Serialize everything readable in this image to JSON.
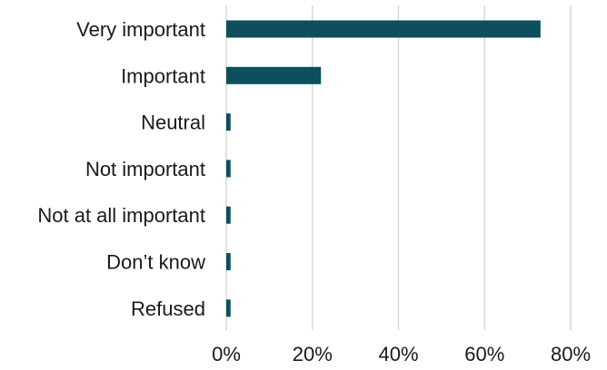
{
  "chart_data": {
    "type": "bar",
    "orientation": "horizontal",
    "categories": [
      "Very important",
      "Important",
      "Neutral",
      "Not important",
      "Not at all important",
      "Don’t know",
      "Refused"
    ],
    "values": [
      73,
      22,
      1,
      1,
      1,
      1,
      1
    ],
    "value_unit": "%",
    "xlim": [
      0,
      80
    ],
    "x_ticks": [
      0,
      20,
      40,
      60,
      80
    ],
    "x_tick_labels": [
      "0%",
      "20%",
      "40%",
      "60%",
      "80%"
    ],
    "grid": "vertical",
    "legend": "none",
    "bar_color": "#0d4f5c",
    "gridline_color": "#d9d9d9"
  }
}
